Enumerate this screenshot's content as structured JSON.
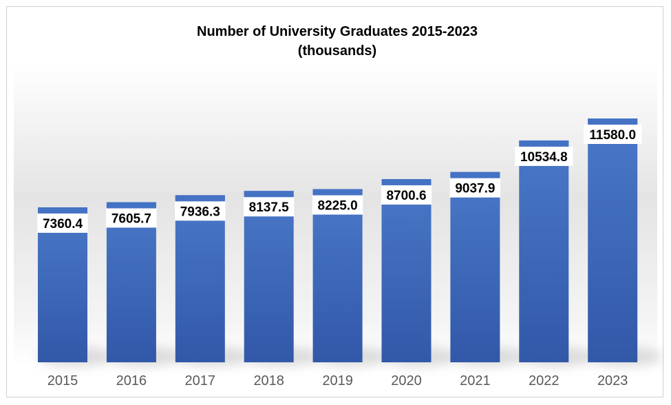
{
  "chart_data": {
    "type": "bar",
    "title": "Number of University Graduates 2015-2023",
    "subtitle": "(thousands)",
    "categories": [
      "2015",
      "2016",
      "2017",
      "2018",
      "2019",
      "2020",
      "2021",
      "2022",
      "2023"
    ],
    "values": [
      7360.4,
      7605.7,
      7936.3,
      8137.5,
      8225.0,
      8700.6,
      9037.9,
      10534.8,
      11580.0
    ],
    "value_labels": [
      "7360.4",
      "7605.7",
      "7936.3",
      "8137.5",
      "8225.0",
      "8700.6",
      "9037.9",
      "10534.8",
      "11580.0"
    ],
    "xlabel": "",
    "ylabel": "",
    "ylim": [
      0,
      13000
    ],
    "grid": false,
    "legend": "none",
    "bar_color": "#4472c4",
    "bar_color_dark": "#2f55a4"
  }
}
